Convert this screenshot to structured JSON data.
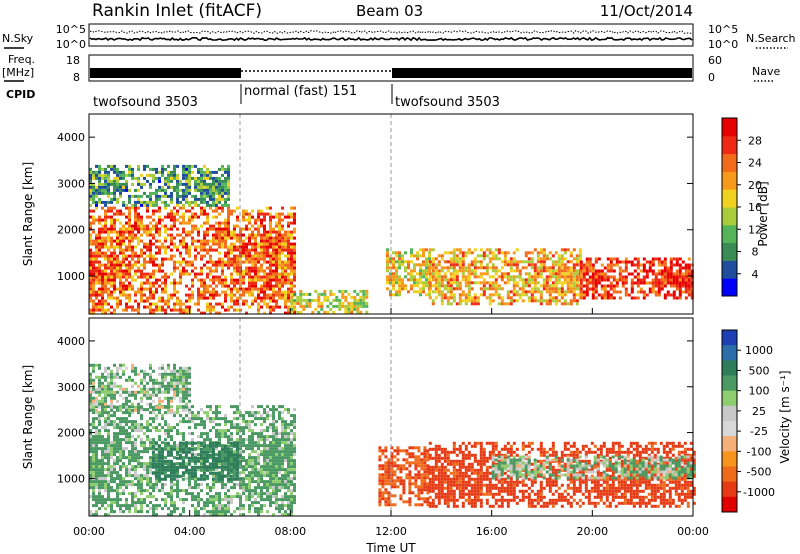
{
  "header": {
    "station": "Rankin Inlet (fitACF)",
    "beam": "Beam 03",
    "date": "11/Oct/2014"
  },
  "status_panel": {
    "nsky_label": "N.Sky",
    "nsky_ticks": [
      "10^5",
      "10^0"
    ],
    "nsearch_label": "N.Search",
    "nsearch_ticks": [
      "10^5",
      "10^0"
    ],
    "freq_label": "Freq.",
    "freq_unit": "[MHz]",
    "freq_ticks": [
      "18",
      "8"
    ],
    "nave_label": "Nave",
    "nave_ticks": [
      "60",
      "0"
    ],
    "cpid_label": "CPID",
    "cpid_segments": [
      {
        "label": "twofsound 3503",
        "start_h": 0,
        "end_h": 6
      },
      {
        "label": "normal (fast) 151",
        "start_h": 6,
        "end_h": 12
      },
      {
        "label": "twofsound 3503",
        "start_h": 12,
        "end_h": 24
      }
    ]
  },
  "colors": {
    "power_scale": [
      "#0000ff",
      "#1f4e9c",
      "#3a8c55",
      "#55b35a",
      "#a9cc3a",
      "#f0d21e",
      "#f79a1c",
      "#f26b1a",
      "#ee2a14",
      "#e60000"
    ],
    "velocity_scale": [
      "#1d3fb3",
      "#2c6ea9",
      "#2e7d5a",
      "#4c9a63",
      "#8fcd71",
      "#c8c8c8",
      "#d8d8d8",
      "#f5b07a",
      "#f7941d",
      "#ef6a1a",
      "#e53a14",
      "#e00000"
    ]
  },
  "chart_data": [
    {
      "type": "heatmap",
      "title": "",
      "quantity": "Power",
      "xlabel": "",
      "ylabel": "Slant Range [km]",
      "xlim": [
        0,
        24
      ],
      "ylim": [
        180,
        4500
      ],
      "x_ticks": [],
      "y_ticks": [
        "1000",
        "2000",
        "3000",
        "4000"
      ],
      "colorbar_label": "Power [dB]",
      "colorbar_ticks": [
        "4",
        "8",
        "12",
        "16",
        "20",
        "24",
        "28"
      ],
      "colorbar_range": [
        0,
        32
      ],
      "features": [
        {
          "t_start": 0.0,
          "t_end": 8.2,
          "r_low": 200,
          "r_high": 2500,
          "power": 24
        },
        {
          "t_start": 0.0,
          "t_end": 5.5,
          "r_low": 2500,
          "r_high": 3400,
          "power": 10
        },
        {
          "t_start": 8.0,
          "t_end": 11.0,
          "r_low": 200,
          "r_high": 700,
          "power": 16
        },
        {
          "t_start": 11.8,
          "t_end": 13.5,
          "r_low": 600,
          "r_high": 1600,
          "power": 18
        },
        {
          "t_start": 13.5,
          "t_end": 19.5,
          "r_low": 400,
          "r_high": 1600,
          "power": 20
        },
        {
          "t_start": 19.5,
          "t_end": 24.0,
          "r_low": 500,
          "r_high": 1400,
          "power": 28
        }
      ]
    },
    {
      "type": "heatmap",
      "title": "",
      "quantity": "Velocity",
      "xlabel": "Time UT",
      "ylabel": "Slant Range [km]",
      "xlim": [
        0,
        24
      ],
      "ylim": [
        180,
        4500
      ],
      "x_ticks": [
        "00:00",
        "04:00",
        "08:00",
        "12:00",
        "16:00",
        "20:00",
        "00:00"
      ],
      "y_ticks": [
        "1000",
        "2000",
        "3000",
        "4000"
      ],
      "colorbar_label": "Velocity [m s⁻¹]",
      "colorbar_ticks": [
        "1000",
        "500",
        "100",
        "25",
        "-25",
        "-100",
        "-500",
        "-1000"
      ],
      "features": [
        {
          "t_start": 0.0,
          "t_end": 8.2,
          "r_low": 200,
          "r_high": 2600,
          "velocity": 150
        },
        {
          "t_start": 2.5,
          "t_end": 6.0,
          "r_low": 1000,
          "r_high": 1800,
          "velocity": 400
        },
        {
          "t_start": 0.0,
          "t_end": 4.0,
          "r_low": 2500,
          "r_high": 3500,
          "velocity": 100
        },
        {
          "t_start": 11.5,
          "t_end": 13.5,
          "r_low": 400,
          "r_high": 1700,
          "velocity": -300
        },
        {
          "t_start": 13.5,
          "t_end": 24.0,
          "r_low": 400,
          "r_high": 1800,
          "velocity": -400
        },
        {
          "t_start": 16.0,
          "t_end": 24.0,
          "r_low": 1000,
          "r_high": 1500,
          "velocity": 100
        }
      ]
    }
  ]
}
